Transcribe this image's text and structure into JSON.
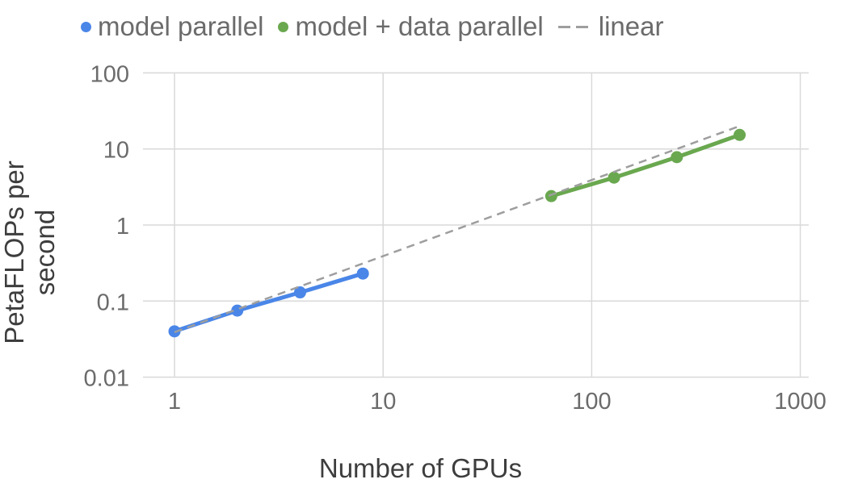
{
  "chart_data": {
    "type": "line",
    "title": "",
    "xlabel": "Number of GPUs",
    "ylabel": "PetaFLOPs per second",
    "xscale": "log",
    "yscale": "log",
    "xlim": [
      1,
      1000
    ],
    "ylim": [
      0.01,
      100
    ],
    "x_ticks": [
      "1",
      "10",
      "100",
      "1000"
    ],
    "y_ticks": [
      "100",
      "10",
      "1",
      "0.1",
      "0.01"
    ],
    "grid": true,
    "legend_position": "top",
    "series": [
      {
        "name": "model parallel",
        "color": "#4a86e8",
        "style": "solid-markers",
        "x": [
          1,
          2,
          4,
          8
        ],
        "y": [
          0.04,
          0.075,
          0.13,
          0.23
        ]
      },
      {
        "name": "model + data parallel",
        "color": "#6aa84f",
        "style": "solid-markers",
        "x": [
          64,
          128,
          256,
          512
        ],
        "y": [
          2.4,
          4.2,
          7.8,
          15.3
        ]
      },
      {
        "name": "linear",
        "color": "#9e9e9e",
        "style": "dashed",
        "x": [
          1,
          512
        ],
        "y": [
          0.039,
          20
        ]
      }
    ]
  },
  "legend": [
    {
      "label": "model parallel",
      "color": "#4a86e8",
      "marker": "dot"
    },
    {
      "label": "model + data parallel",
      "color": "#6aa84f",
      "marker": "dot"
    },
    {
      "label": "linear",
      "color": "#9e9e9e",
      "marker": "dash"
    }
  ]
}
